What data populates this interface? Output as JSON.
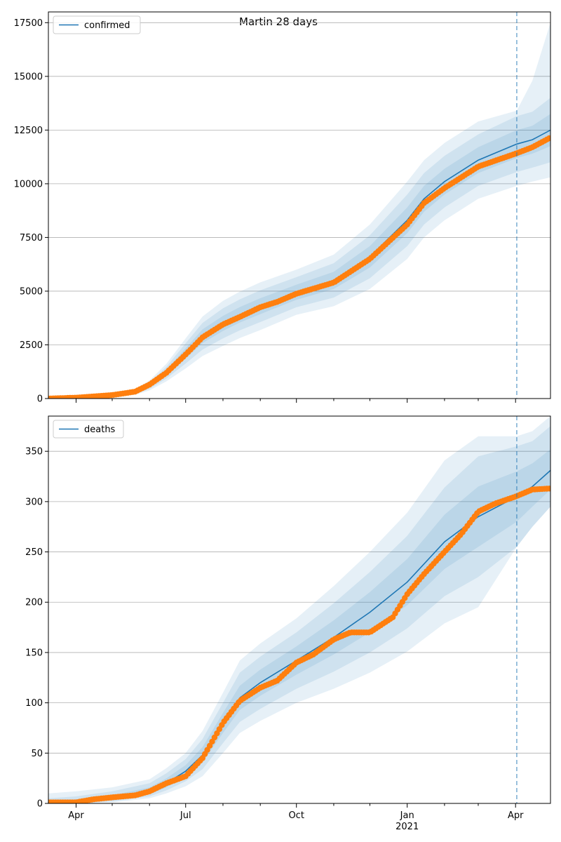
{
  "figure": {
    "title": "Martin 28 days"
  },
  "colors": {
    "model_line": "#1f77b4",
    "band": "#1f77b4",
    "observed": "#ff7f0e",
    "forecast_marker": "#1f77b4",
    "grid": "#b0b0b0"
  },
  "chart_data": [
    {
      "type": "line",
      "legend": "confirmed",
      "legend_placement": "top-left",
      "grid": "horizontal",
      "ylim": [
        0,
        18000
      ],
      "yticks": [
        0,
        2500,
        5000,
        7500,
        10000,
        12500,
        15000,
        17500
      ],
      "xlim": [
        "2020-03-09",
        "2021-04-30"
      ],
      "forecast_start": "2021-04-02",
      "model": {
        "x": [
          "2020-03-09",
          "2020-04-01",
          "2020-05-01",
          "2020-05-20",
          "2020-06-01",
          "2020-06-15",
          "2020-07-01",
          "2020-07-15",
          "2020-08-01",
          "2020-08-15",
          "2020-09-01",
          "2020-10-01",
          "2020-11-01",
          "2020-12-01",
          "2021-01-01",
          "2021-01-15",
          "2021-02-01",
          "2021-03-01",
          "2021-04-02",
          "2021-04-15",
          "2021-04-30"
        ],
        "median": [
          0,
          40,
          150,
          300,
          600,
          1200,
          2100,
          2900,
          3500,
          3900,
          4300,
          4950,
          5500,
          6600,
          8300,
          9300,
          10100,
          11100,
          11850,
          12050,
          12500
        ],
        "bands": [
          {
            "name": "50%",
            "lower": [
              0,
              30,
              120,
              250,
              520,
              1060,
              1860,
              2580,
              3150,
              3540,
              3930,
              4600,
              5100,
              6100,
              7700,
              8700,
              9500,
              10500,
              11200,
              11400,
              11750
            ],
            "upper": [
              0,
              50,
              180,
              350,
              680,
              1340,
              2340,
              3220,
              3850,
              4260,
              4670,
              5300,
              5900,
              7100,
              8900,
              9900,
              10700,
              11700,
              12500,
              12700,
              13250
            ]
          },
          {
            "name": "80%",
            "lower": [
              0,
              20,
              100,
              210,
              450,
              930,
              1630,
              2280,
              2800,
              3180,
              3560,
              4250,
              4700,
              5600,
              7100,
              8100,
              8900,
              9900,
              10550,
              10750,
              11000
            ],
            "upper": [
              0,
              60,
              210,
              400,
              760,
              1480,
              2570,
              3520,
              4200,
              4620,
              5040,
              5650,
              6300,
              7600,
              9500,
              10500,
              11300,
              12300,
              13150,
              13350,
              14000
            ]
          },
          {
            "name": "95%",
            "lower": [
              0,
              10,
              80,
              170,
              380,
              800,
              1400,
              1980,
              2450,
              2820,
              3190,
              3900,
              4300,
              5100,
              6500,
              7500,
              8300,
              9300,
              9900,
              10100,
              10300
            ],
            "upper": [
              0,
              70,
              240,
              450,
              840,
              1620,
              2800,
              3820,
              4550,
              4980,
              5410,
              6000,
              6700,
              8100,
              10100,
              11100,
              11900,
              12900,
              13400,
              14800,
              17500
            ]
          }
        ]
      },
      "observed": {
        "x": [
          "2020-03-09",
          "2020-04-01",
          "2020-05-01",
          "2020-05-20",
          "2020-06-01",
          "2020-06-15",
          "2020-07-01",
          "2020-07-15",
          "2020-08-01",
          "2020-08-15",
          "2020-09-01",
          "2020-09-15",
          "2020-10-01",
          "2020-11-01",
          "2020-12-01",
          "2021-01-01",
          "2021-01-15",
          "2021-02-01",
          "2021-03-01",
          "2021-04-01",
          "2021-04-15",
          "2021-04-30"
        ],
        "y": [
          0,
          40,
          160,
          320,
          650,
          1200,
          2050,
          2850,
          3450,
          3800,
          4250,
          4500,
          4880,
          5400,
          6500,
          8100,
          9100,
          9800,
          10800,
          11400,
          11700,
          12150
        ]
      }
    },
    {
      "type": "line",
      "legend": "deaths",
      "legend_placement": "top-left",
      "grid": "horizontal",
      "ylim": [
        0,
        385
      ],
      "yticks": [
        0,
        50,
        100,
        150,
        200,
        250,
        300,
        350
      ],
      "xlim": [
        "2020-03-09",
        "2021-04-30"
      ],
      "forecast_start": "2021-04-02",
      "xtick_labels": [
        {
          "date": "2020-04-01",
          "label": "Apr",
          "sub": ""
        },
        {
          "date": "2020-07-01",
          "label": "Jul",
          "sub": ""
        },
        {
          "date": "2020-10-01",
          "label": "Oct",
          "sub": ""
        },
        {
          "date": "2021-01-01",
          "label": "Jan",
          "sub": "2021"
        },
        {
          "date": "2021-04-01",
          "label": "Apr",
          "sub": ""
        }
      ],
      "xtick_minor": [
        "2020-03-01",
        "2020-05-01",
        "2020-06-01",
        "2020-08-01",
        "2020-09-01",
        "2020-11-01",
        "2020-12-01",
        "2021-02-01",
        "2021-03-01",
        "2021-05-01"
      ],
      "model": {
        "x": [
          "2020-03-09",
          "2020-04-01",
          "2020-05-01",
          "2020-06-01",
          "2020-06-15",
          "2020-07-01",
          "2020-07-15",
          "2020-08-01",
          "2020-08-15",
          "2020-09-01",
          "2020-10-01",
          "2020-11-01",
          "2020-12-01",
          "2021-01-01",
          "2021-02-01",
          "2021-03-01",
          "2021-04-02",
          "2021-04-15",
          "2021-04-30"
        ],
        "median": [
          0,
          2,
          5,
          12,
          20,
          32,
          48,
          80,
          105,
          120,
          142,
          165,
          190,
          220,
          260,
          285,
          305,
          315,
          331
        ],
        "bands": [
          {
            "name": "50%",
            "lower": [
              0,
              1,
              3,
              9,
              16,
              27,
              41,
              70,
              93,
              107,
              128,
              148,
              170,
              197,
              233,
              255,
              280,
              295,
              312
            ],
            "upper": [
              2,
              4,
              8,
              16,
              25,
              38,
              56,
              90,
              117,
              133,
              156,
              182,
              210,
              243,
              287,
              315,
              330,
              338,
              352
            ]
          },
          {
            "name": "80%",
            "lower": [
              0,
              0,
              2,
              7,
              13,
              22,
              34,
              60,
              81,
              94,
              114,
              131,
              150,
              174,
              206,
              225,
              255,
              275,
              295
            ],
            "upper": [
              5,
              7,
              12,
              20,
              30,
              44,
              64,
              100,
              130,
              146,
              170,
              199,
              230,
              266,
              314,
              345,
              355,
              360,
              375
            ]
          },
          {
            "name": "95%",
            "lower": [
              0,
              0,
              1,
              5,
              10,
              17,
              27,
              50,
              70,
              82,
              100,
              114,
              130,
              151,
              179,
              195,
              255,
              275,
              295
            ],
            "upper": [
              10,
              12,
              16,
              24,
              35,
              50,
              72,
              110,
              142,
              159,
              184,
              216,
              250,
              289,
              341,
              365,
              365,
              370,
              385
            ]
          }
        ]
      },
      "observed": {
        "x": [
          "2020-03-09",
          "2020-04-01",
          "2020-04-15",
          "2020-05-01",
          "2020-05-20",
          "2020-06-01",
          "2020-06-15",
          "2020-07-01",
          "2020-07-15",
          "2020-08-01",
          "2020-08-15",
          "2020-09-01",
          "2020-09-15",
          "2020-10-01",
          "2020-10-15",
          "2020-11-01",
          "2020-11-15",
          "2020-12-01",
          "2020-12-20",
          "2021-01-01",
          "2021-01-15",
          "2021-02-01",
          "2021-02-15",
          "2021-03-01",
          "2021-03-15",
          "2021-04-01",
          "2021-04-15",
          "2021-04-30"
        ],
        "y": [
          1,
          1,
          4,
          6,
          8,
          12,
          20,
          27,
          45,
          80,
          102,
          115,
          122,
          140,
          148,
          163,
          170,
          170,
          185,
          208,
          228,
          250,
          268,
          290,
          298,
          305,
          312,
          313
        ]
      }
    }
  ]
}
